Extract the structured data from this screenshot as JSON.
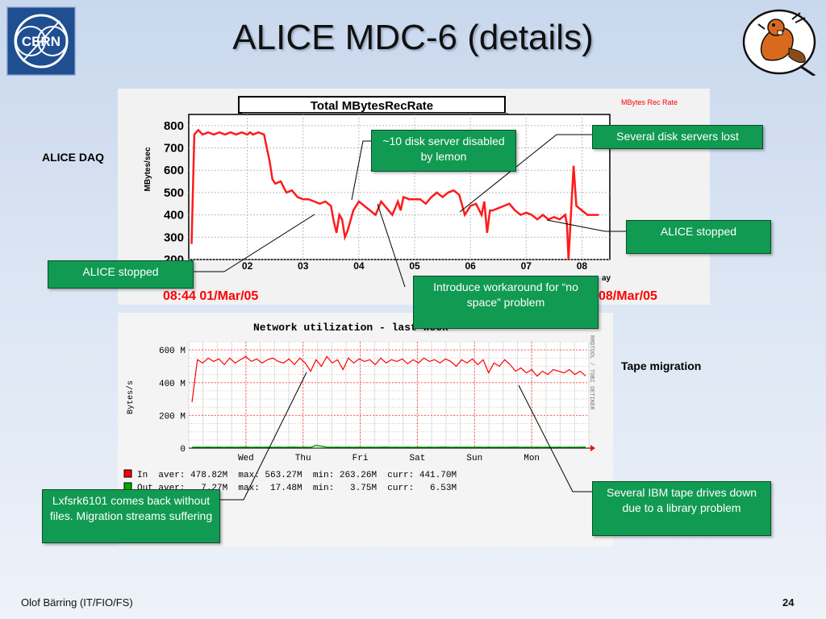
{
  "slide": {
    "title": "ALICE MDC-6 (details)",
    "footer_author": "Olof Bärring (IT/FIO/FS)",
    "page_number": "24",
    "label_daq": "ALICE DAQ",
    "label_tape": "Tape migration",
    "logo_cern_text": "CERN"
  },
  "callouts": {
    "disk_disabled": "~10 disk server disabled by lemon",
    "servers_lost": "Several disk servers lost",
    "alice_stopped_right": "ALICE stopped",
    "alice_stopped_left": "ALICE stopped",
    "workaround": "Introduce workaround for “no space” problem",
    "lxfsrk": "Lxfsrk6101 comes back without files. Migration streams suffering",
    "ibm_drives": "Several IBM tape drives down due to a library problem"
  },
  "colors": {
    "callout_bg": "#119a52",
    "series_red": "#ff1a1a",
    "timestamp_red": "#ff0000",
    "out_green": "#00aa00"
  },
  "chart_data": [
    {
      "type": "line",
      "title": "Total  MBytesRecRate",
      "legend": "MBytes Rec Rate",
      "ylabel": "MBytes/sec",
      "ylim": [
        200,
        850
      ],
      "yticks": [
        "800",
        "700",
        "600",
        "500",
        "400",
        "300",
        "200"
      ],
      "xticks": [
        "02",
        "03",
        "04",
        "05",
        "06",
        "07",
        "08"
      ],
      "xlabel_fragment": "ay",
      "time_start": "08:44 01/Mar/05",
      "time_end": "08/Mar/05",
      "x": [
        1.0,
        1.05,
        1.12,
        1.2,
        1.3,
        1.4,
        1.5,
        1.6,
        1.7,
        1.8,
        1.9,
        2.0,
        2.05,
        2.1,
        2.2,
        2.3,
        2.4,
        2.45,
        2.5,
        2.6,
        2.7,
        2.8,
        2.9,
        3.0,
        3.1,
        3.2,
        3.3,
        3.4,
        3.5,
        3.55,
        3.6,
        3.65,
        3.7,
        3.75,
        3.8,
        3.9,
        4.0,
        4.1,
        4.2,
        4.3,
        4.4,
        4.5,
        4.6,
        4.7,
        4.75,
        4.8,
        4.9,
        5.0,
        5.1,
        5.2,
        5.3,
        5.4,
        5.5,
        5.6,
        5.7,
        5.8,
        5.9,
        6.0,
        6.1,
        6.2,
        6.25,
        6.3,
        6.35,
        6.4,
        6.5,
        6.6,
        6.7,
        6.8,
        6.9,
        7.0,
        7.1,
        7.2,
        7.3,
        7.4,
        7.5,
        7.6,
        7.7,
        7.73,
        7.76,
        7.8,
        7.85,
        7.9,
        8.0,
        8.1,
        8.2,
        8.3
      ],
      "values": [
        270,
        760,
        780,
        760,
        770,
        760,
        770,
        760,
        770,
        760,
        770,
        760,
        770,
        760,
        770,
        760,
        640,
        560,
        540,
        550,
        500,
        510,
        480,
        470,
        470,
        460,
        450,
        460,
        440,
        370,
        320,
        400,
        380,
        300,
        330,
        420,
        460,
        440,
        420,
        400,
        460,
        430,
        400,
        460,
        420,
        480,
        470,
        470,
        470,
        450,
        480,
        500,
        480,
        500,
        510,
        490,
        400,
        440,
        450,
        400,
        460,
        320,
        420,
        420,
        430,
        440,
        450,
        420,
        400,
        410,
        400,
        380,
        400,
        380,
        390,
        380,
        400,
        360,
        200,
        390,
        620,
        440,
        420,
        400,
        400,
        400
      ]
    },
    {
      "type": "line",
      "title": "Network utilization - last week",
      "ylabel": "Bytes/s",
      "yticks": [
        "600 M",
        "400 M",
        "200 M",
        "0"
      ],
      "ylim": [
        0,
        650
      ],
      "xticks": [
        "Wed",
        "Thu",
        "Fri",
        "Sat",
        "Sun",
        "Mon"
      ],
      "side_text": "RRDTOOL / TOBI OETIKER",
      "series": [
        {
          "name": "In",
          "color": "#ff0000",
          "aver": "478.82M",
          "max": "563.27M",
          "min": "263.26M",
          "curr": "441.70M",
          "values": [
            280,
            540,
            520,
            550,
            530,
            545,
            510,
            550,
            520,
            540,
            560,
            530,
            545,
            520,
            540,
            550,
            530,
            520,
            545,
            510,
            550,
            520,
            470,
            540,
            500,
            560,
            520,
            540,
            480,
            550,
            520,
            545,
            530,
            540,
            510,
            550,
            520,
            540,
            530,
            545,
            515,
            540,
            520,
            550,
            530,
            540,
            520,
            545,
            530,
            500,
            540,
            520,
            545,
            510,
            540,
            460,
            520,
            500,
            540,
            510,
            470,
            490,
            460,
            480,
            440,
            470,
            450,
            480,
            470,
            460,
            480,
            450,
            470,
            440
          ]
        },
        {
          "name": "Out",
          "color": "#00aa00",
          "aver": "7.27M",
          "max": "17.48M",
          "min": "3.75M",
          "curr": "6.53M",
          "values": [
            5,
            6,
            5,
            7,
            5,
            6,
            5,
            6,
            5,
            6,
            7,
            5,
            6,
            5,
            6,
            5,
            6,
            5,
            6,
            7,
            5,
            6,
            5,
            17,
            12,
            6,
            5,
            6,
            5,
            6,
            5,
            6,
            5,
            6,
            5,
            6,
            7,
            5,
            6,
            5,
            6,
            5,
            6,
            5,
            6,
            5,
            6,
            7,
            5,
            6,
            5,
            6,
            5,
            6,
            5,
            6,
            5,
            6,
            5,
            6,
            7,
            5,
            6,
            5,
            6,
            5,
            6,
            5,
            6,
            5,
            6,
            5,
            6,
            7
          ]
        }
      ]
    }
  ]
}
